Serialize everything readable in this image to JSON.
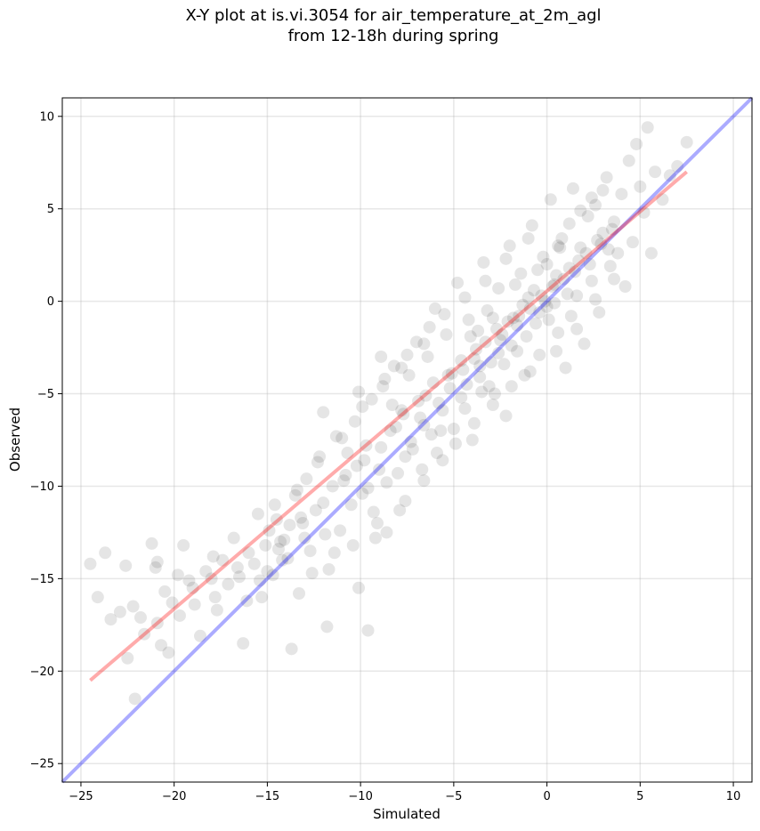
{
  "chart_data": {
    "type": "scatter",
    "title_line1": "X-Y plot at is.vi.3054 for air_temperature_at_2m_agl",
    "title_line2": "from 12-18h during spring",
    "xlabel": "Simulated",
    "ylabel": "Observed",
    "xlim": [
      -26,
      11
    ],
    "ylim": [
      -26,
      11
    ],
    "xticks": [
      -25,
      -20,
      -15,
      -10,
      -5,
      0,
      5,
      10
    ],
    "yticks": [
      -25,
      -20,
      -15,
      -10,
      -5,
      0,
      5,
      10
    ],
    "xtick_labels": [
      "−25",
      "−20",
      "−15",
      "−10",
      "−5",
      "0",
      "5",
      "10"
    ],
    "ytick_labels": [
      "−25",
      "−20",
      "−15",
      "−10",
      "−5",
      "0",
      "5",
      "10"
    ],
    "grid": true,
    "point_color": "#000000",
    "point_alpha": 0.1,
    "identity_line": {
      "color": "#0000ff",
      "x": [
        -26,
        11
      ],
      "y": [
        -26,
        11
      ]
    },
    "fit_line": {
      "color": "#ff0000",
      "x": [
        -24.5,
        7.5
      ],
      "y": [
        -20.5,
        7.0
      ]
    },
    "points": [
      [
        -24.5,
        -14.2
      ],
      [
        -24.1,
        -16.0
      ],
      [
        -23.7,
        -13.6
      ],
      [
        -23.4,
        -17.2
      ],
      [
        -22.9,
        -16.8
      ],
      [
        -22.6,
        -14.3
      ],
      [
        -22.5,
        -19.3
      ],
      [
        -22.1,
        -21.5
      ],
      [
        -22.2,
        -16.5
      ],
      [
        -21.8,
        -17.1
      ],
      [
        -21.6,
        -18.0
      ],
      [
        -21.2,
        -13.1
      ],
      [
        -21.0,
        -14.4
      ],
      [
        -20.9,
        -17.4
      ],
      [
        -20.7,
        -18.6
      ],
      [
        -20.5,
        -15.7
      ],
      [
        -20.3,
        -19.0
      ],
      [
        -20.1,
        -16.3
      ],
      [
        -19.8,
        -14.8
      ],
      [
        -19.5,
        -13.2
      ],
      [
        -19.2,
        -15.1
      ],
      [
        -18.9,
        -16.4
      ],
      [
        -18.6,
        -18.1
      ],
      [
        -18.3,
        -14.6
      ],
      [
        -18.0,
        -15.0
      ],
      [
        -17.7,
        -16.7
      ],
      [
        -17.4,
        -14.0
      ],
      [
        -17.1,
        -15.3
      ],
      [
        -16.8,
        -12.8
      ],
      [
        -16.5,
        -14.9
      ],
      [
        -16.3,
        -18.5
      ],
      [
        -16.0,
        -13.6
      ],
      [
        -15.7,
        -14.2
      ],
      [
        -15.5,
        -11.5
      ],
      [
        -15.3,
        -16.0
      ],
      [
        -15.1,
        -13.2
      ],
      [
        -14.9,
        -12.4
      ],
      [
        -14.7,
        -14.8
      ],
      [
        -14.5,
        -11.8
      ],
      [
        -14.3,
        -13.0
      ],
      [
        -14.1,
        -12.9
      ],
      [
        -13.9,
        -13.9
      ],
      [
        -13.7,
        -18.8
      ],
      [
        -13.5,
        -10.5
      ],
      [
        -13.3,
        -15.8
      ],
      [
        -13.1,
        -12.0
      ],
      [
        -12.9,
        -9.6
      ],
      [
        -12.7,
        -13.5
      ],
      [
        -12.4,
        -11.3
      ],
      [
        -12.2,
        -8.4
      ],
      [
        -12.0,
        -6.0
      ],
      [
        -11.8,
        -17.6
      ],
      [
        -11.5,
        -10.0
      ],
      [
        -11.3,
        -7.3
      ],
      [
        -11.1,
        -12.4
      ],
      [
        -10.9,
        -9.7
      ],
      [
        -10.7,
        -8.2
      ],
      [
        -10.5,
        -11.0
      ],
      [
        -10.3,
        -6.5
      ],
      [
        -10.1,
        -15.5
      ],
      [
        -9.9,
        -10.4
      ],
      [
        -9.7,
        -7.8
      ],
      [
        -9.6,
        -17.8
      ],
      [
        -9.4,
        -5.3
      ],
      [
        -9.2,
        -12.8
      ],
      [
        -9.0,
        -9.1
      ],
      [
        -8.8,
        -4.6
      ],
      [
        -8.6,
        -12.5
      ],
      [
        -8.4,
        -7.0
      ],
      [
        -8.2,
        -3.5
      ],
      [
        -8.0,
        -9.3
      ],
      [
        -7.8,
        -5.9
      ],
      [
        -7.6,
        -10.8
      ],
      [
        -7.4,
        -4.0
      ],
      [
        -7.2,
        -8.0
      ],
      [
        -7.0,
        -2.2
      ],
      [
        -6.8,
        -6.3
      ],
      [
        -6.6,
        -9.7
      ],
      [
        -6.4,
        -3.0
      ],
      [
        -6.2,
        -7.2
      ],
      [
        -6.0,
        -0.4
      ],
      [
        -5.8,
        -5.5
      ],
      [
        -5.6,
        -8.6
      ],
      [
        -5.4,
        -1.8
      ],
      [
        -5.2,
        -4.7
      ],
      [
        -5.0,
        -6.9
      ],
      [
        -4.8,
        1.0
      ],
      [
        -4.6,
        -3.2
      ],
      [
        -4.4,
        -5.8
      ],
      [
        -4.2,
        -1.0
      ],
      [
        -4.0,
        -7.5
      ],
      [
        -3.8,
        -2.6
      ],
      [
        -3.6,
        -4.1
      ],
      [
        -3.4,
        2.1
      ],
      [
        -3.2,
        -0.5
      ],
      [
        -3.0,
        -3.3
      ],
      [
        -2.8,
        -5.0
      ],
      [
        -2.6,
        0.7
      ],
      [
        -2.4,
        -1.8
      ],
      [
        -2.2,
        -6.2
      ],
      [
        -2.0,
        3.0
      ],
      [
        -1.8,
        -0.9
      ],
      [
        -1.6,
        -2.7
      ],
      [
        -1.4,
        1.5
      ],
      [
        -1.2,
        -4.0
      ],
      [
        -1.0,
        0.2
      ],
      [
        -0.8,
        4.1
      ],
      [
        -0.6,
        -1.2
      ],
      [
        -0.4,
        -2.9
      ],
      [
        -0.2,
        2.4
      ],
      [
        0.0,
        -0.3
      ],
      [
        0.2,
        5.5
      ],
      [
        0.4,
        0.9
      ],
      [
        0.6,
        -1.7
      ],
      [
        0.8,
        3.4
      ],
      [
        1.0,
        -3.6
      ],
      [
        1.2,
        1.8
      ],
      [
        1.4,
        6.1
      ],
      [
        1.6,
        0.3
      ],
      [
        1.8,
        2.9
      ],
      [
        2.0,
        -2.3
      ],
      [
        2.2,
        4.6
      ],
      [
        2.4,
        1.1
      ],
      [
        2.6,
        5.2
      ],
      [
        2.8,
        -0.6
      ],
      [
        3.0,
        3.7
      ],
      [
        3.2,
        6.7
      ],
      [
        3.4,
        1.9
      ],
      [
        3.6,
        4.3
      ],
      [
        3.8,
        2.6
      ],
      [
        4.0,
        5.8
      ],
      [
        4.2,
        0.8
      ],
      [
        4.4,
        7.6
      ],
      [
        4.6,
        3.2
      ],
      [
        4.8,
        8.5
      ],
      [
        5.0,
        6.2
      ],
      [
        5.2,
        4.8
      ],
      [
        5.4,
        9.4
      ],
      [
        5.6,
        2.6
      ],
      [
        5.8,
        7.0
      ],
      [
        6.2,
        5.5
      ],
      [
        6.6,
        6.8
      ],
      [
        7.0,
        7.3
      ],
      [
        7.5,
        8.6
      ],
      [
        -20.9,
        -14.1
      ],
      [
        -19.7,
        -17.0
      ],
      [
        -17.9,
        -13.8
      ],
      [
        -16.1,
        -16.2
      ],
      [
        -15.0,
        -14.6
      ],
      [
        -13.8,
        -12.1
      ],
      [
        -12.6,
        -14.7
      ],
      [
        -11.4,
        -13.6
      ],
      [
        -10.2,
        -8.9
      ],
      [
        -9.3,
        -11.4
      ],
      [
        -8.1,
        -6.8
      ],
      [
        -7.3,
        -7.6
      ],
      [
        -6.5,
        -5.1
      ],
      [
        -5.7,
        -7.0
      ],
      [
        -5.1,
        -3.9
      ],
      [
        -4.3,
        -4.5
      ],
      [
        -3.7,
        -1.6
      ],
      [
        -3.1,
        -4.6
      ],
      [
        -2.5,
        -2.1
      ],
      [
        -1.9,
        -2.4
      ],
      [
        -1.3,
        -0.2
      ],
      [
        -0.7,
        0.6
      ],
      [
        -0.1,
        0.0
      ],
      [
        0.5,
        1.4
      ],
      [
        1.1,
        0.4
      ],
      [
        1.7,
        2.2
      ],
      [
        2.3,
        2.0
      ],
      [
        2.9,
        3.1
      ],
      [
        3.5,
        3.9
      ],
      [
        -14.4,
        -13.4
      ],
      [
        -13.2,
        -11.7
      ],
      [
        -12.0,
        -10.9
      ],
      [
        -10.8,
        -9.4
      ],
      [
        -9.8,
        -8.6
      ],
      [
        -8.9,
        -7.9
      ],
      [
        -8.3,
        -5.6
      ],
      [
        -7.7,
        -6.1
      ],
      [
        -6.9,
        -5.4
      ],
      [
        -6.1,
        -4.4
      ],
      [
        -5.3,
        -4.0
      ],
      [
        -4.5,
        -3.7
      ],
      [
        -3.9,
        -3.1
      ],
      [
        -3.3,
        -2.2
      ],
      [
        -2.7,
        -1.5
      ],
      [
        -2.1,
        -1.1
      ],
      [
        -1.5,
        -0.8
      ],
      [
        -0.9,
        -0.4
      ],
      [
        -0.3,
        0.3
      ],
      [
        0.3,
        0.8
      ],
      [
        0.9,
        1.2
      ],
      [
        1.5,
        1.6
      ],
      [
        2.1,
        2.6
      ],
      [
        2.7,
        3.3
      ],
      [
        3.3,
        2.8
      ],
      [
        -4.1,
        -1.9
      ],
      [
        -3.5,
        -4.9
      ],
      [
        -2.9,
        -0.9
      ],
      [
        -2.3,
        -3.4
      ],
      [
        -1.7,
        0.9
      ],
      [
        -1.1,
        -1.9
      ],
      [
        -0.5,
        1.7
      ],
      [
        0.1,
        -1.0
      ],
      [
        0.7,
        2.9
      ],
      [
        1.3,
        -0.8
      ],
      [
        -6.3,
        -1.4
      ],
      [
        -7.5,
        -2.9
      ],
      [
        -8.7,
        -4.2
      ],
      [
        -9.9,
        -5.7
      ],
      [
        -11.0,
        -7.4
      ],
      [
        -12.3,
        -8.7
      ],
      [
        -13.4,
        -10.2
      ],
      [
        -14.6,
        -11.0
      ],
      [
        -5.9,
        -8.2
      ],
      [
        -6.7,
        -9.1
      ],
      [
        -7.9,
        -11.3
      ],
      [
        -9.1,
        -12.0
      ],
      [
        -10.4,
        -13.2
      ],
      [
        -11.7,
        -14.5
      ],
      [
        -4.9,
        -7.7
      ],
      [
        -3.9,
        -6.6
      ],
      [
        -2.9,
        -5.6
      ],
      [
        -1.9,
        -4.6
      ],
      [
        -0.9,
        -3.8
      ],
      [
        0.5,
        -2.7
      ],
      [
        1.6,
        -1.5
      ],
      [
        2.6,
        0.1
      ],
      [
        3.6,
        1.2
      ],
      [
        -1.0,
        3.4
      ],
      [
        -2.2,
        2.3
      ],
      [
        -3.3,
        1.1
      ],
      [
        -4.4,
        0.2
      ],
      [
        -5.5,
        -0.7
      ],
      [
        -6.6,
        -2.3
      ],
      [
        -7.8,
        -3.6
      ],
      [
        -8.9,
        -3.0
      ],
      [
        -10.1,
        -4.9
      ],
      [
        0.0,
        2.0
      ],
      [
        0.6,
        3.0
      ],
      [
        1.2,
        4.2
      ],
      [
        1.8,
        4.9
      ],
      [
        2.4,
        5.6
      ],
      [
        3.0,
        6.0
      ],
      [
        -0.4,
        -0.6
      ],
      [
        0.4,
        -0.1
      ],
      [
        -1.6,
        -1.3
      ],
      [
        -2.6,
        -2.8
      ],
      [
        -3.6,
        -3.5
      ],
      [
        -4.6,
        -5.2
      ],
      [
        -5.6,
        -5.9
      ],
      [
        -6.6,
        -6.7
      ],
      [
        -7.6,
        -8.4
      ],
      [
        -8.6,
        -9.8
      ],
      [
        -9.6,
        -10.1
      ],
      [
        -11.9,
        -12.6
      ],
      [
        -13.0,
        -12.8
      ],
      [
        -14.2,
        -14.0
      ],
      [
        -15.4,
        -15.1
      ],
      [
        -16.6,
        -14.4
      ],
      [
        -17.8,
        -16.0
      ],
      [
        -19.0,
        -15.5
      ]
    ]
  }
}
